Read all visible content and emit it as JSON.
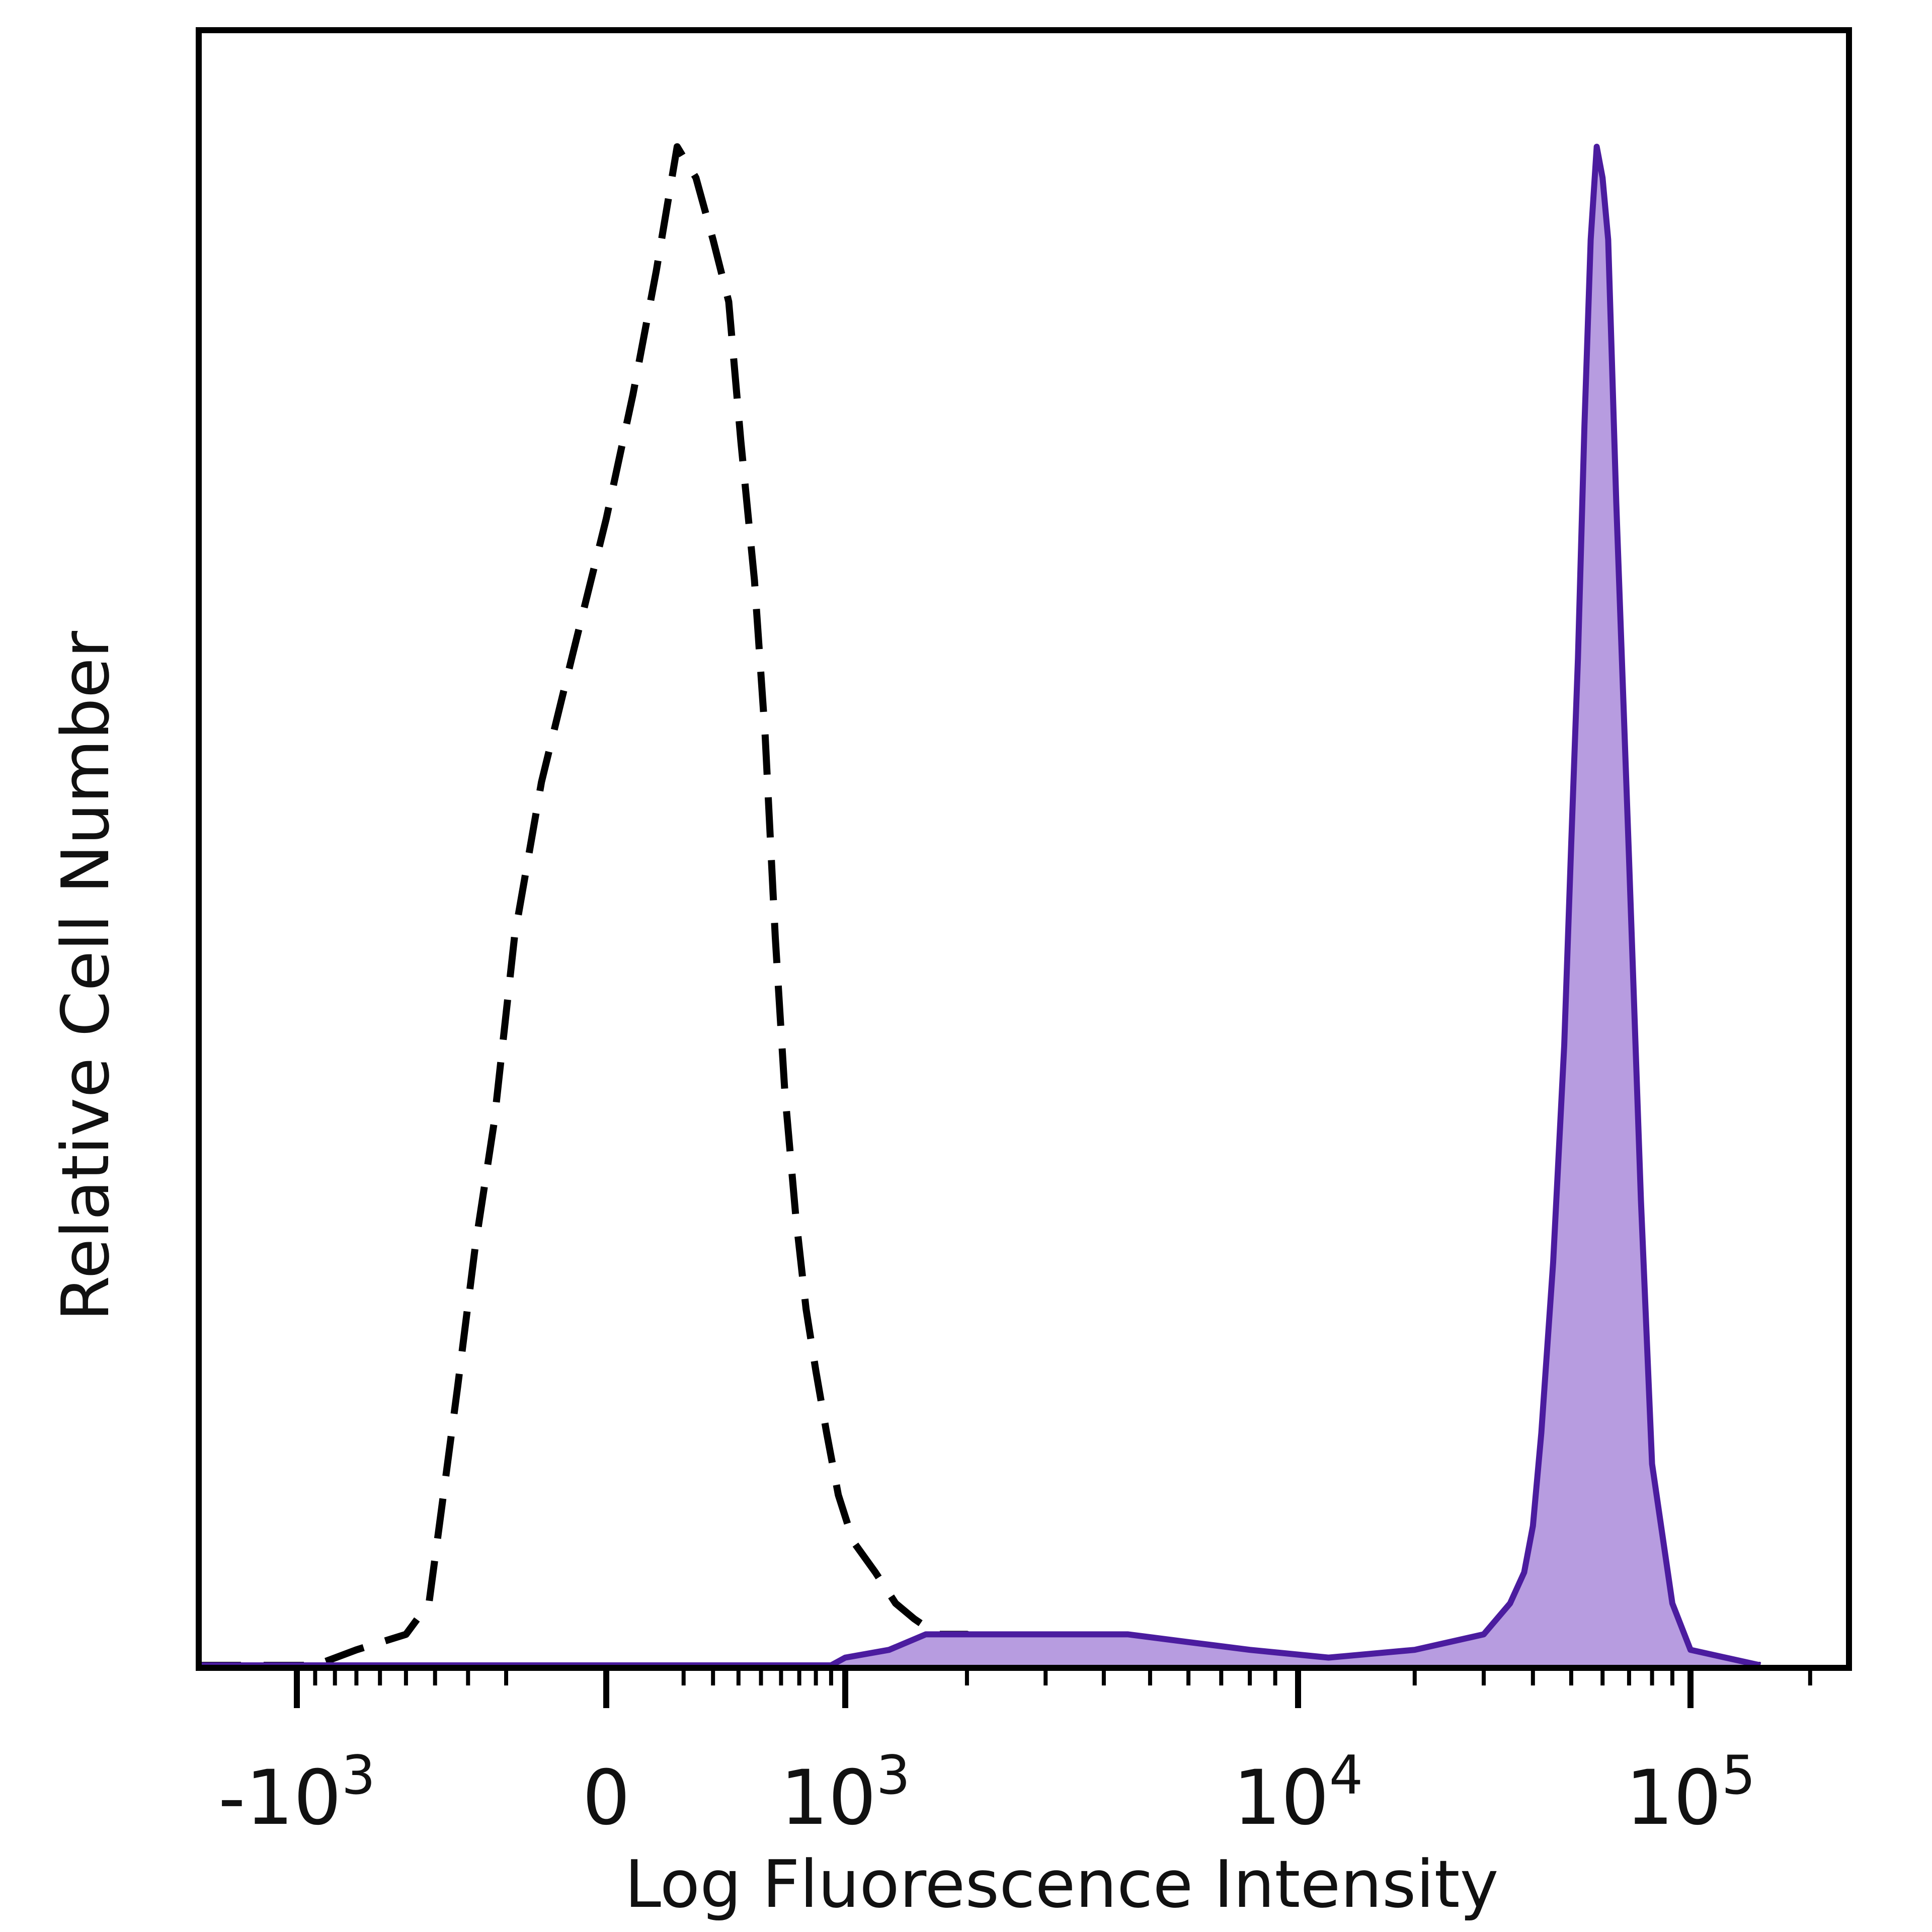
{
  "chart_data": {
    "type": "area",
    "title": "",
    "xlabel": "Log Fluorescence Intensity",
    "ylabel": "Relative Cell Number",
    "x_scale": "biexponential",
    "xlim": [
      -2000,
      150000
    ],
    "ylim": [
      0,
      100
    ],
    "y_ticks": false,
    "grid": false,
    "legend": "none",
    "x_ticks": [
      {
        "value": -1000,
        "base": "-10",
        "exp": "3"
      },
      {
        "value": 0,
        "base": "0",
        "exp": ""
      },
      {
        "value": 1000,
        "base": "10",
        "exp": "3"
      },
      {
        "value": 10000,
        "base": "10",
        "exp": "4"
      },
      {
        "value": 100000,
        "base": "10",
        "exp": "5"
      }
    ],
    "series": [
      {
        "style": "dashed",
        "color": "#000000",
        "fill": "none",
        "x": [
          -2000,
          -1500,
          -900,
          -700,
          -500,
          -420,
          -380,
          -330,
          -280,
          -230,
          -180,
          -120,
          -60,
          0,
          60,
          120,
          180,
          240,
          300,
          360,
          410,
          470,
          520,
          570,
          620,
          680,
          740,
          800,
          870,
          950,
          1050,
          1200,
          1350,
          1500,
          1700,
          2000,
          2400,
          3000,
          4000,
          5500,
          7000,
          10000,
          20000,
          150000
        ],
        "y": [
          0,
          0,
          0,
          1,
          2,
          4,
          10,
          18,
          27,
          35,
          47,
          57,
          65,
          74,
          82,
          90,
          98,
          96,
          92,
          88,
          79,
          70,
          60,
          47,
          37,
          29,
          23,
          19,
          15,
          11,
          8,
          6,
          4,
          3,
          2,
          2,
          1,
          1,
          1,
          0.5,
          0.5,
          0,
          0,
          0
        ]
      },
      {
        "style": "solid",
        "color": "#4b1c9f",
        "fill": "#b79ce0",
        "x": [
          -2000,
          0,
          900,
          1000,
          1300,
          1600,
          2000,
          2600,
          3500,
          4500,
          6000,
          8000,
          12000,
          20000,
          30000,
          35000,
          38000,
          40000,
          42000,
          45000,
          48000,
          50000,
          52000,
          54000,
          56000,
          58000,
          60000,
          62000,
          65000,
          70000,
          75000,
          80000,
          90000,
          100000,
          150000
        ],
        "y": [
          0,
          0,
          0,
          0.5,
          1,
          2,
          2,
          2,
          2,
          2,
          1.5,
          1,
          0.5,
          1,
          2,
          4,
          6,
          9,
          15,
          26,
          40,
          53,
          65,
          80,
          92,
          98,
          96,
          92,
          75,
          52,
          30,
          13,
          4,
          1,
          0
        ]
      }
    ]
  }
}
